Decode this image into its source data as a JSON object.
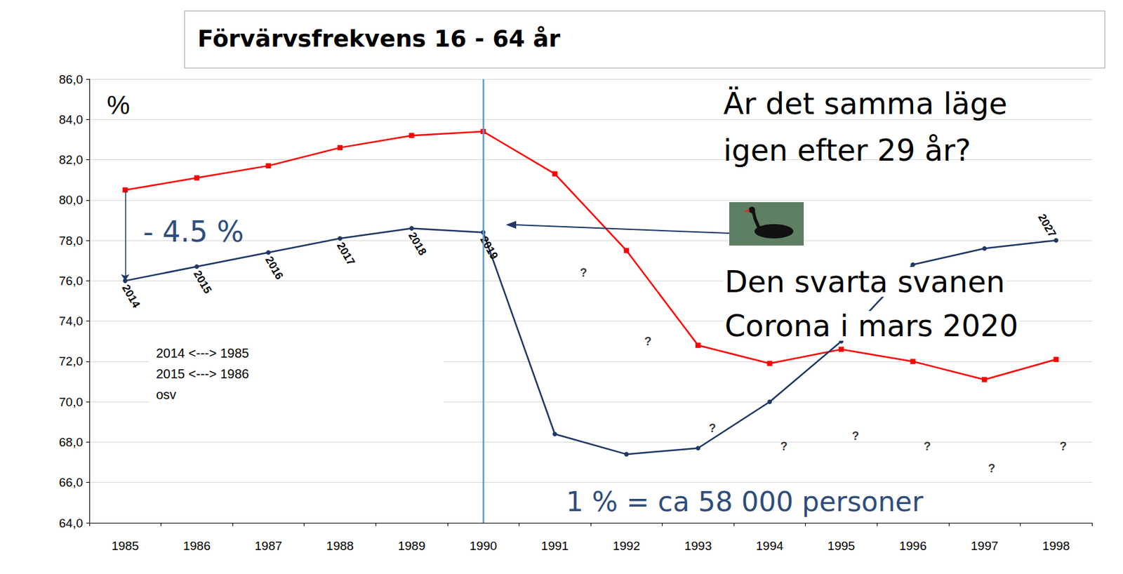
{
  "chart_data": {
    "type": "line",
    "title": "Förvärvsfrekvens 16 - 64 år",
    "categories": [
      "1985",
      "1986",
      "1987",
      "1988",
      "1989",
      "1990",
      "1991",
      "1992",
      "1993",
      "1994",
      "1995",
      "1996",
      "1997",
      "1998"
    ],
    "series": [
      {
        "color": "#ff0000",
        "marker": "square",
        "values": [
          80.5,
          81.1,
          81.7,
          82.6,
          83.2,
          83.4,
          81.3,
          77.5,
          72.8,
          71.9,
          72.6,
          72.0,
          71.1,
          72.1
        ]
      },
      {
        "color": "#1f3864",
        "marker": "circle",
        "values": [
          76.0,
          76.7,
          77.4,
          78.1,
          78.6,
          78.4,
          68.4,
          67.4,
          67.7,
          70.0,
          73.0,
          76.8,
          77.6,
          78.0
        ],
        "point_labels": [
          "2014",
          "2015",
          "2016",
          "2017",
          "2018",
          "2019",
          null,
          null,
          null,
          null,
          null,
          null,
          null,
          "2027"
        ]
      }
    ],
    "ylim": [
      64,
      86
    ],
    "yticks": [
      {
        "value": 64,
        "label": "64,0"
      },
      {
        "value": 66,
        "label": "66,0"
      },
      {
        "value": 68,
        "label": "68,0"
      },
      {
        "value": 70,
        "label": "70,0"
      },
      {
        "value": 72,
        "label": "72,0"
      },
      {
        "value": 74,
        "label": "74,0"
      },
      {
        "value": 76,
        "label": "76,0"
      },
      {
        "value": 78,
        "label": "78,0"
      },
      {
        "value": 80,
        "label": "80,0"
      },
      {
        "value": 82,
        "label": "82,0"
      },
      {
        "value": 84,
        "label": "84,0"
      },
      {
        "value": 86,
        "label": "86,0"
      }
    ],
    "grid": true,
    "y_unit_label": "%",
    "reference_line": {
      "x": "1990",
      "color": "#5b9bd5"
    },
    "gap_arrow": {
      "label": "- 4.5 %"
    },
    "annotations": [
      {
        "text": "?",
        "x": 1991.4,
        "y": 76.4
      },
      {
        "text": "?",
        "x": 1992.3,
        "y": 73.0
      },
      {
        "text": "?",
        "x": 1993.2,
        "y": 68.7
      },
      {
        "text": "?",
        "x": 1994.2,
        "y": 67.8
      },
      {
        "text": "?",
        "x": 1995.2,
        "y": 68.3
      },
      {
        "text": "?",
        "x": 1996.2,
        "y": 67.8
      },
      {
        "text": "?",
        "x": 1997.1,
        "y": 66.7
      },
      {
        "text": "?",
        "x": 1998.1,
        "y": 67.8
      }
    ],
    "question": [
      "Är det samma läge",
      "igen efter 29 år?"
    ],
    "swan_text": [
      "Den svarta svanen",
      "Corona i mars 2020"
    ],
    "scale_note": "1 % = ca 58 000 personer",
    "mapping_note": [
      "2014 <---> 1985",
      "2015 <---> 1986",
      "osv"
    ]
  }
}
